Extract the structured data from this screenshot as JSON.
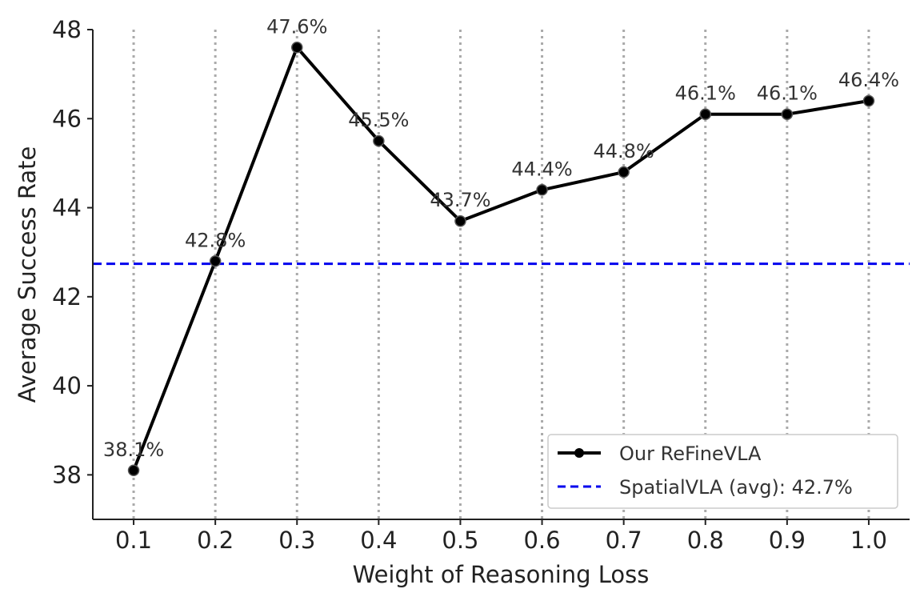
{
  "chart_data": {
    "type": "line",
    "title": "",
    "xlabel": "Weight of Reasoning Loss",
    "ylabel": "Average Success Rate",
    "x": [
      0.1,
      0.2,
      0.3,
      0.4,
      0.5,
      0.6,
      0.7,
      0.8,
      0.9,
      1.0
    ],
    "x_tick_labels": [
      "0.1",
      "0.2",
      "0.3",
      "0.4",
      "0.5",
      "0.6",
      "0.7",
      "0.8",
      "0.9",
      "1.0"
    ],
    "y_ticks": [
      38,
      40,
      42,
      44,
      46,
      48
    ],
    "y_tick_labels": [
      "38",
      "40",
      "42",
      "44",
      "46",
      "48"
    ],
    "xlim": [
      0.05,
      1.05
    ],
    "ylim": [
      37,
      48
    ],
    "grid": "vertical dotted",
    "series": [
      {
        "name": "Our ReFineVLA",
        "color": "#000000",
        "style": "solid-with-markers",
        "values": [
          38.1,
          42.8,
          47.6,
          45.5,
          43.7,
          44.4,
          44.8,
          46.1,
          46.1,
          46.4
        ],
        "data_labels": [
          "38.1%",
          "42.8%",
          "47.6%",
          "45.5%",
          "43.7%",
          "44.4%",
          "44.8%",
          "46.1%",
          "46.1%",
          "46.4%"
        ]
      }
    ],
    "reference_lines": [
      {
        "name": "SpatialVLA (avg): 42.7%",
        "value": 42.74,
        "color": "#0000ee",
        "style": "dashed"
      }
    ],
    "legend": {
      "position": "bottom-right",
      "entries": [
        "Our ReFineVLA",
        "SpatialVLA (avg): 42.7%"
      ]
    }
  }
}
